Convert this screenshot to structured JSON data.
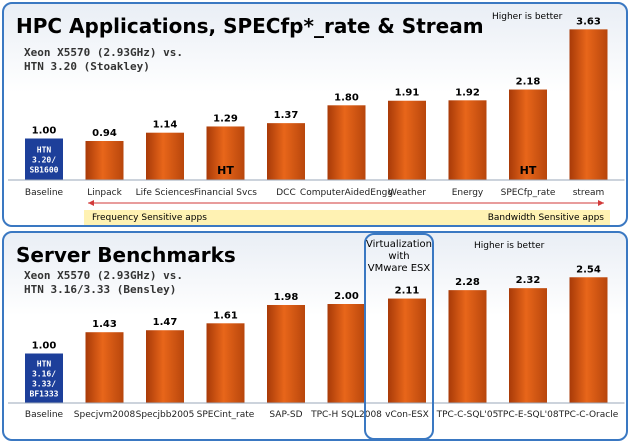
{
  "chart_data": [
    {
      "type": "bar",
      "title": "HPC Applications, SPECfp*_rate & Stream",
      "subtitle": [
        "Xeon X5570 (2.93GHz) vs.",
        "HTN 3.20 (Stoakley)"
      ],
      "note": "Higher is better",
      "baseline_box": [
        "HTN",
        "3.20/",
        "SB1600"
      ],
      "categories": [
        "Baseline",
        "Linpack",
        "Life Sciences",
        "Financial Svcs",
        "DCC",
        "ComputerAidedEngg",
        "Weather",
        "Energy",
        "SPECfp_rate",
        "stream"
      ],
      "values": [
        1.0,
        0.94,
        1.14,
        1.29,
        1.37,
        1.8,
        1.91,
        1.92,
        2.18,
        3.63
      ],
      "value_labels": [
        "1.00",
        "0.94",
        "1.14",
        "1.29",
        "1.37",
        "1.80",
        "1.91",
        "1.92",
        "2.18",
        "3.63"
      ],
      "bar_markers": [
        "",
        "",
        "",
        "HT",
        "",
        "",
        "",
        "",
        "HT",
        ""
      ],
      "bands": {
        "left": "Frequency Sensitive apps",
        "right": "Bandwidth Sensitive apps"
      },
      "bar_color": "#e8661a",
      "baseline_color": "#1d3f9a"
    },
    {
      "type": "bar",
      "title": "Server Benchmarks",
      "subtitle": [
        "Xeon X5570 (2.93GHz) vs.",
        "HTN 3.16/3.33 (Bensley)"
      ],
      "note": "Higher is better",
      "baseline_box": [
        "HTN",
        "3.16/",
        "3.33/",
        "BF1333"
      ],
      "categories": [
        "Baseline",
        "Specjvm2008",
        "Specjbb2005",
        "SPECint_rate",
        "SAP-SD",
        "TPC-H SQL2008",
        "vCon-ESX",
        "TPC-C-SQL'05",
        "TPC-E-SQL'08",
        "TPC-C-Oracle"
      ],
      "values": [
        1.0,
        1.43,
        1.47,
        1.61,
        1.98,
        2.0,
        2.11,
        2.28,
        2.32,
        2.54
      ],
      "value_labels": [
        "1.00",
        "1.43",
        "1.47",
        "1.61",
        "1.98",
        "2.00",
        "2.11",
        "2.28",
        "2.32",
        "2.54"
      ],
      "highlight": [
        "Virtualization",
        "with",
        "VMware ESX"
      ],
      "bar_color": "#e8661a",
      "baseline_color": "#1d3f9a"
    }
  ]
}
